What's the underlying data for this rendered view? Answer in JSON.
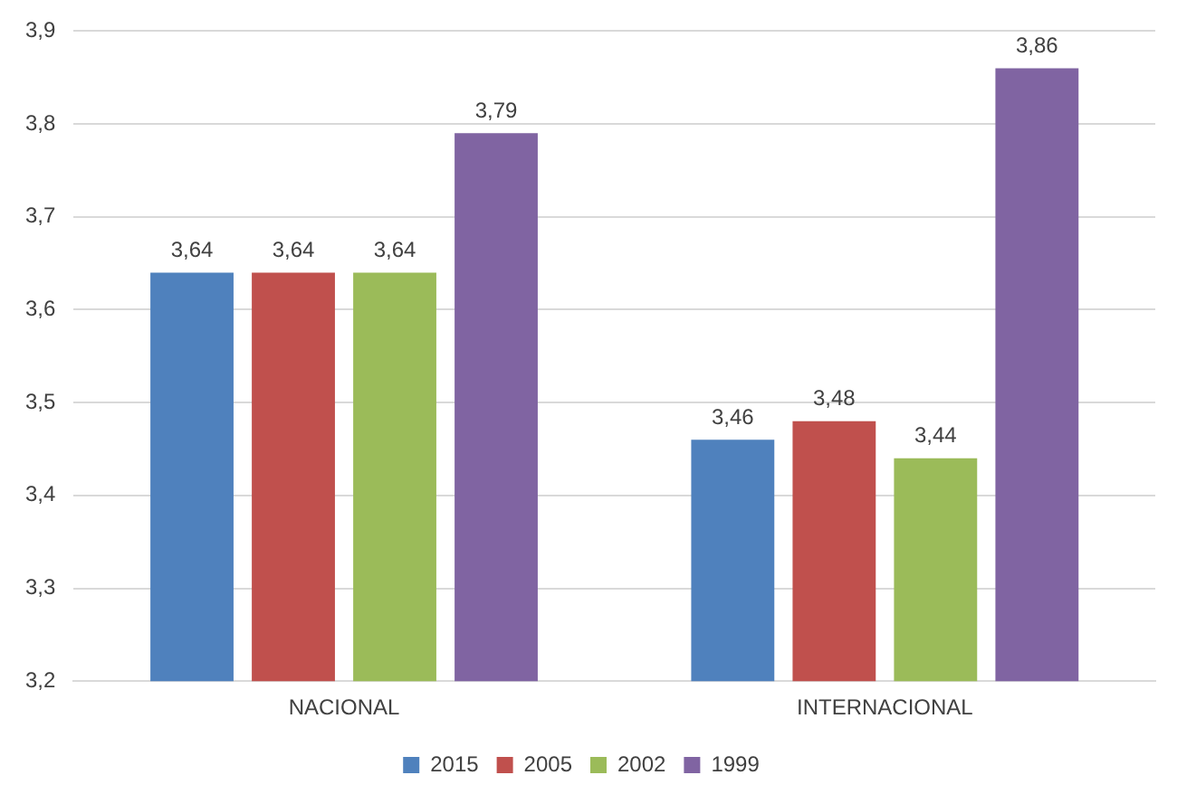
{
  "chart_data": {
    "type": "bar",
    "categories": [
      "NACIONAL",
      "INTERNACIONAL"
    ],
    "series": [
      {
        "name": "2015",
        "color": "#4f81bd",
        "values": [
          3.64,
          3.46
        ],
        "value_labels": [
          "3,64",
          "3,46"
        ]
      },
      {
        "name": "2005",
        "color": "#c0504d",
        "values": [
          3.64,
          3.48
        ],
        "value_labels": [
          "3,64",
          "3,48"
        ]
      },
      {
        "name": "2002",
        "color": "#9bbb59",
        "values": [
          3.64,
          3.44
        ],
        "value_labels": [
          "3,64",
          "3,44"
        ]
      },
      {
        "name": "1999",
        "color": "#8064a2",
        "values": [
          3.79,
          3.86
        ],
        "value_labels": [
          "3,79",
          "3,86"
        ]
      }
    ],
    "ylim": [
      3.2,
      3.9
    ],
    "yticks": [
      {
        "value": 3.2,
        "label": "3,2"
      },
      {
        "value": 3.3,
        "label": "3,3"
      },
      {
        "value": 3.4,
        "label": "3,4"
      },
      {
        "value": 3.5,
        "label": "3,5"
      },
      {
        "value": 3.6,
        "label": "3,6"
      },
      {
        "value": 3.7,
        "label": "3,7"
      },
      {
        "value": 3.8,
        "label": "3,8"
      },
      {
        "value": 3.9,
        "label": "3,9"
      }
    ],
    "grid": "y",
    "legend": "bottom"
  }
}
